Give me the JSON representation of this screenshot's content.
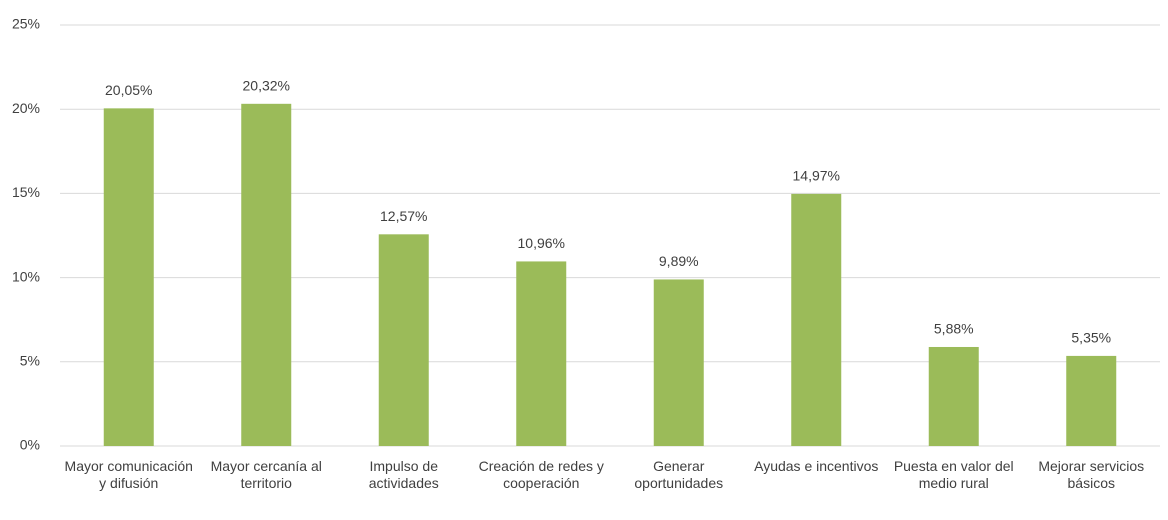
{
  "chart_data": {
    "type": "bar",
    "categories": [
      "Mayor comunicación y difusión",
      "Mayor cercanía al territorio",
      "Impulso de actividades",
      "Creación de redes y cooperación",
      "Generar oportunidades",
      "Ayudas e incentivos",
      "Puesta en valor del medio rural",
      "Mejorar servicios básicos"
    ],
    "values": [
      20.05,
      20.32,
      12.57,
      10.96,
      9.89,
      14.97,
      5.88,
      5.35
    ],
    "value_labels": [
      "20,05%",
      "20,32%",
      "12,57%",
      "10,96%",
      "9,89%",
      "14,97%",
      "5,88%",
      "5,35%"
    ],
    "color": "#9bbb59",
    "ylim": [
      0,
      25
    ],
    "yticks": [
      {
        "value": 0,
        "label": "0%"
      },
      {
        "value": 5,
        "label": "5%"
      },
      {
        "value": 10,
        "label": "10%"
      },
      {
        "value": 15,
        "label": "15%"
      },
      {
        "value": 20,
        "label": "20%"
      },
      {
        "value": 25,
        "label": "25%"
      }
    ],
    "grid": true
  }
}
